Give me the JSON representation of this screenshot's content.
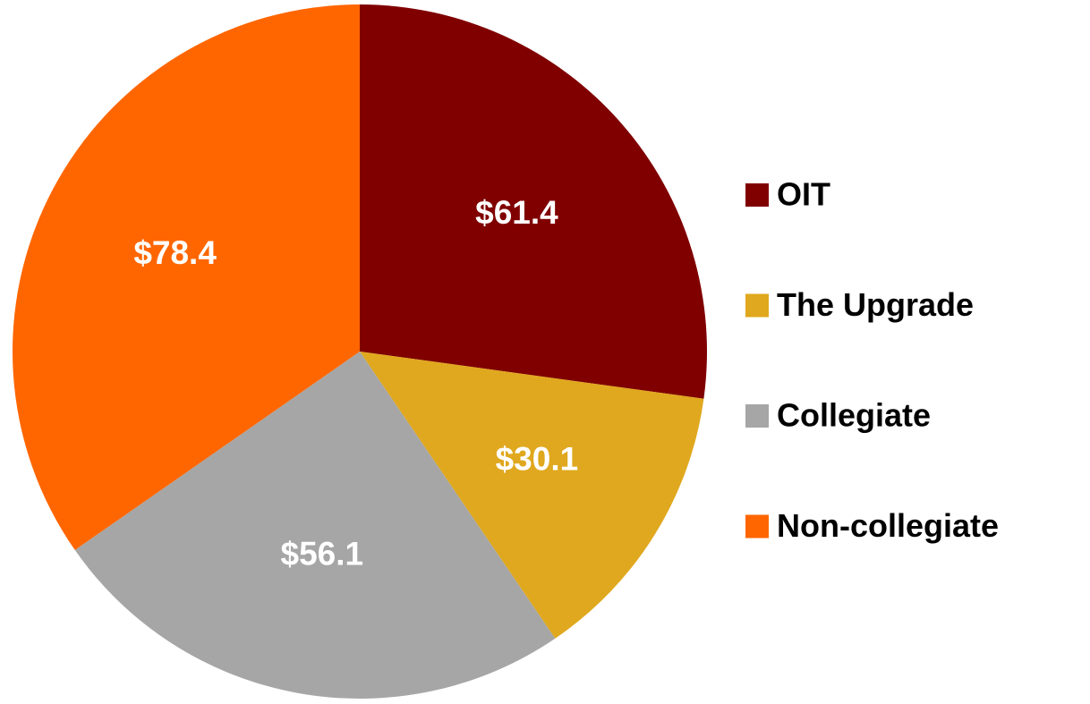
{
  "chart_data": {
    "type": "pie",
    "categories": [
      "OIT",
      "The Upgrade",
      "Collegiate",
      "Non-collegiate"
    ],
    "values": [
      61.4,
      30.1,
      56.1,
      78.4
    ],
    "value_labels": [
      "$61.4",
      "$30.1",
      "$56.1",
      "$78.4"
    ],
    "colors": [
      "#800000",
      "#e0a81e",
      "#a6a6a6",
      "#ff6600"
    ],
    "legend": "right"
  }
}
